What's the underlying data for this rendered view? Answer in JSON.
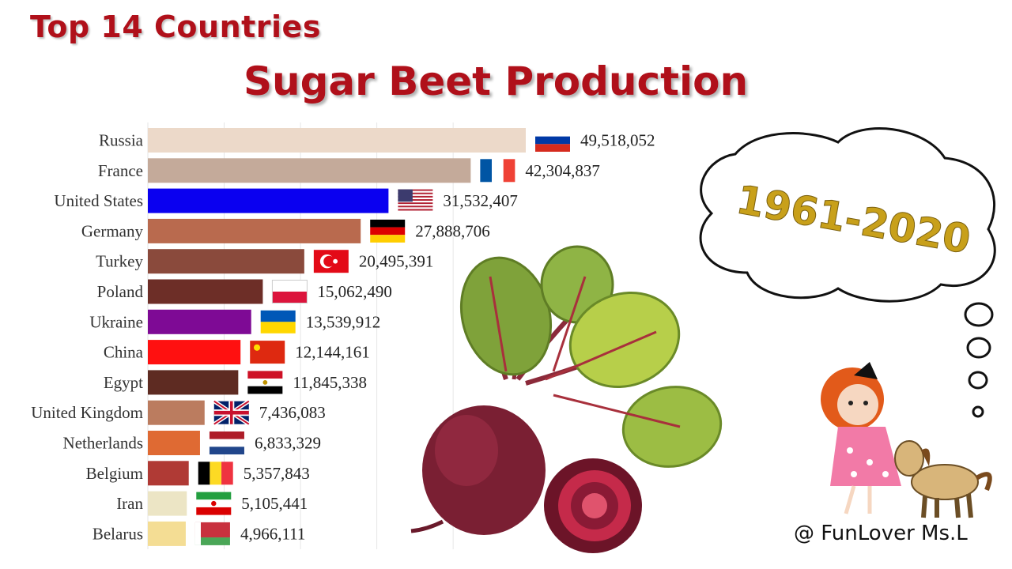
{
  "header": {
    "title": "Top 14 Countries",
    "subtitle": "Sugar Beet Production"
  },
  "thought_bubble": {
    "text": "1961-2020"
  },
  "watermark": "@ FunLover Ms.L",
  "chart_data": {
    "type": "bar",
    "orientation": "horizontal",
    "title": "Sugar Beet Production",
    "grid": true,
    "xlim": [
      0,
      55000000
    ],
    "categories": [
      "Russia",
      "France",
      "United States",
      "Germany",
      "Turkey",
      "Poland",
      "Ukraine",
      "China",
      "Egypt",
      "United Kingdom",
      "Netherlands",
      "Belgium",
      "Iran",
      "Belarus"
    ],
    "values": [
      49518052,
      42304837,
      31532407,
      27888706,
      20495391,
      15062490,
      13539912,
      12144161,
      11845338,
      7436083,
      6833329,
      5357843,
      5105441,
      4966111
    ],
    "value_labels": [
      "49,518,052",
      "42,304,837",
      "31,532,407",
      "27,888,706",
      "20,495,391",
      "15,062,490",
      "13,539,912",
      "12,144,161",
      "11,845,338",
      "7,436,083",
      "6,833,329",
      "5,357,843",
      "5,105,441",
      "4,966,111"
    ],
    "colors": [
      "#ecd9c9",
      "#c4aa9a",
      "#0a00f0",
      "#b96a4e",
      "#8a4a3c",
      "#6d2e27",
      "#7e0a95",
      "#ff1010",
      "#5e2b22",
      "#bb7c5f",
      "#df6a33",
      "#b03a35",
      "#ece5c5",
      "#f4dd94"
    ],
    "flags": [
      "russia-flag",
      "france-flag",
      "usa-flag",
      "germany-flag",
      "turkey-flag",
      "poland-flag",
      "ukraine-flag",
      "china-flag",
      "egypt-flag",
      "uk-flag",
      "netherlands-flag",
      "belgium-flag",
      "iran-flag",
      "belarus-flag"
    ]
  }
}
